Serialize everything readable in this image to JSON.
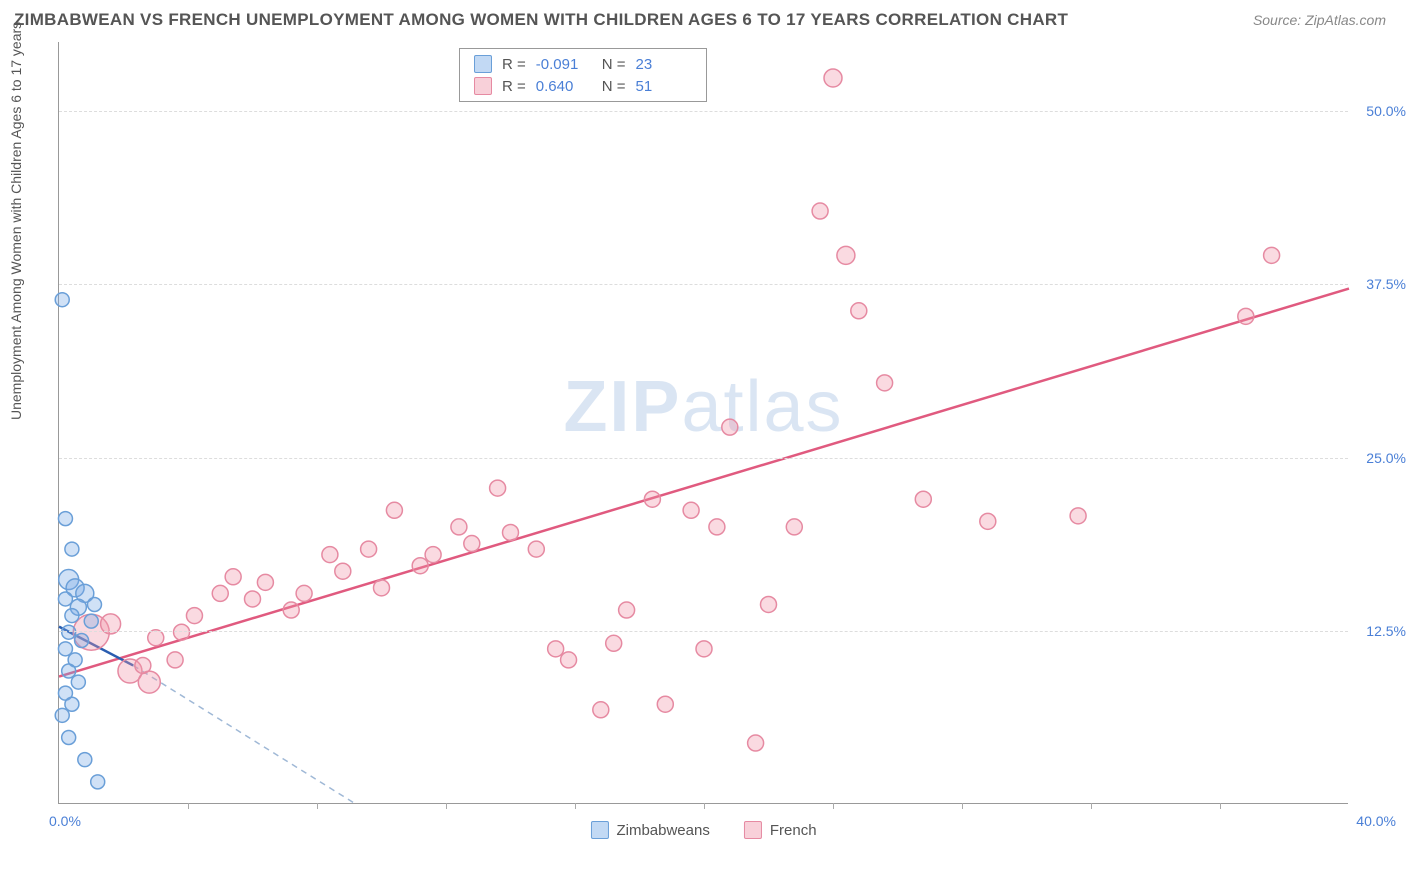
{
  "header": {
    "title": "ZIMBABWEAN VS FRENCH UNEMPLOYMENT AMONG WOMEN WITH CHILDREN AGES 6 TO 17 YEARS CORRELATION CHART",
    "source": "Source: ZipAtlas.com"
  },
  "y_axis": {
    "label": "Unemployment Among Women with Children Ages 6 to 17 years"
  },
  "watermark": {
    "left": "ZIP",
    "right": "atlas"
  },
  "chart": {
    "type": "scatter",
    "x_domain": [
      0,
      40
    ],
    "y_domain": [
      0,
      55
    ],
    "y_ticks": [
      12.5,
      25.0,
      37.5,
      50.0
    ],
    "y_tick_labels": [
      "12.5%",
      "25.0%",
      "37.5%",
      "50.0%"
    ],
    "x_minor_ticks": [
      4,
      8,
      12,
      16,
      20,
      24,
      28,
      32,
      36
    ],
    "x_origin_label": "0.0%",
    "x_end_label": "40.0%",
    "colors": {
      "blue_fill": "rgba(120,170,230,0.35)",
      "blue_stroke": "#6a9fd8",
      "pink_fill": "rgba(240,150,170,0.35)",
      "pink_stroke": "#e68aa2",
      "trend_blue": "#2a5db0",
      "trend_pink": "#e05a7f",
      "trend_dash": "#9fb8d6",
      "axis_label": "#4a7fd6",
      "grid": "#dddddd"
    },
    "stats_legend": [
      {
        "swatch": "blue",
        "r_label": "R =",
        "r_value": "-0.091",
        "n_label": "N =",
        "n_value": "23"
      },
      {
        "swatch": "pink",
        "r_label": "R =",
        "r_value": "0.640",
        "n_label": "N =",
        "n_value": "51"
      }
    ],
    "bottom_legend": [
      {
        "swatch": "blue",
        "label": "Zimbabweans"
      },
      {
        "swatch": "pink",
        "label": "French"
      }
    ],
    "series_blue": {
      "points": [
        {
          "x": 0.1,
          "y": 36.4,
          "r": 7
        },
        {
          "x": 0.2,
          "y": 20.6,
          "r": 7
        },
        {
          "x": 0.4,
          "y": 18.4,
          "r": 7
        },
        {
          "x": 0.3,
          "y": 16.2,
          "r": 10
        },
        {
          "x": 0.5,
          "y": 15.6,
          "r": 9
        },
        {
          "x": 0.8,
          "y": 15.2,
          "r": 9
        },
        {
          "x": 0.2,
          "y": 14.8,
          "r": 7
        },
        {
          "x": 0.6,
          "y": 14.2,
          "r": 8
        },
        {
          "x": 0.4,
          "y": 13.6,
          "r": 7
        },
        {
          "x": 1.0,
          "y": 13.2,
          "r": 7
        },
        {
          "x": 0.3,
          "y": 12.4,
          "r": 7
        },
        {
          "x": 0.7,
          "y": 11.8,
          "r": 7
        },
        {
          "x": 0.2,
          "y": 11.2,
          "r": 7
        },
        {
          "x": 0.5,
          "y": 10.4,
          "r": 7
        },
        {
          "x": 0.3,
          "y": 9.6,
          "r": 7
        },
        {
          "x": 0.6,
          "y": 8.8,
          "r": 7
        },
        {
          "x": 0.2,
          "y": 8.0,
          "r": 7
        },
        {
          "x": 0.4,
          "y": 7.2,
          "r": 7
        },
        {
          "x": 0.1,
          "y": 6.4,
          "r": 7
        },
        {
          "x": 0.8,
          "y": 3.2,
          "r": 7
        },
        {
          "x": 1.2,
          "y": 1.6,
          "r": 7
        },
        {
          "x": 0.3,
          "y": 4.8,
          "r": 7
        },
        {
          "x": 1.1,
          "y": 14.4,
          "r": 7
        }
      ],
      "trend_solid": {
        "x1": 0,
        "y1": 12.8,
        "x2": 2.3,
        "y2": 10.0
      },
      "trend_dashed": {
        "x1": 2.3,
        "y1": 10.0,
        "x2": 9.2,
        "y2": 0
      }
    },
    "series_pink": {
      "points": [
        {
          "x": 1.0,
          "y": 12.4,
          "r": 18
        },
        {
          "x": 1.6,
          "y": 13.0,
          "r": 10
        },
        {
          "x": 2.2,
          "y": 9.6,
          "r": 12
        },
        {
          "x": 2.8,
          "y": 8.8,
          "r": 11
        },
        {
          "x": 2.6,
          "y": 10.0,
          "r": 8
        },
        {
          "x": 3.0,
          "y": 12.0,
          "r": 8
        },
        {
          "x": 3.6,
          "y": 10.4,
          "r": 8
        },
        {
          "x": 3.8,
          "y": 12.4,
          "r": 8
        },
        {
          "x": 4.2,
          "y": 13.6,
          "r": 8
        },
        {
          "x": 5.0,
          "y": 15.2,
          "r": 8
        },
        {
          "x": 5.4,
          "y": 16.4,
          "r": 8
        },
        {
          "x": 6.0,
          "y": 14.8,
          "r": 8
        },
        {
          "x": 6.4,
          "y": 16.0,
          "r": 8
        },
        {
          "x": 7.2,
          "y": 14.0,
          "r": 8
        },
        {
          "x": 7.6,
          "y": 15.2,
          "r": 8
        },
        {
          "x": 8.4,
          "y": 18.0,
          "r": 8
        },
        {
          "x": 8.8,
          "y": 16.8,
          "r": 8
        },
        {
          "x": 9.6,
          "y": 18.4,
          "r": 8
        },
        {
          "x": 10.0,
          "y": 15.6,
          "r": 8
        },
        {
          "x": 10.4,
          "y": 21.2,
          "r": 8
        },
        {
          "x": 11.2,
          "y": 17.2,
          "r": 8
        },
        {
          "x": 11.6,
          "y": 18.0,
          "r": 8
        },
        {
          "x": 12.4,
          "y": 20.0,
          "r": 8
        },
        {
          "x": 12.8,
          "y": 18.8,
          "r": 8
        },
        {
          "x": 13.6,
          "y": 22.8,
          "r": 8
        },
        {
          "x": 14.0,
          "y": 19.6,
          "r": 8
        },
        {
          "x": 14.8,
          "y": 18.4,
          "r": 8
        },
        {
          "x": 15.4,
          "y": 11.2,
          "r": 8
        },
        {
          "x": 15.8,
          "y": 10.4,
          "r": 8
        },
        {
          "x": 16.8,
          "y": 6.8,
          "r": 8
        },
        {
          "x": 17.2,
          "y": 11.6,
          "r": 8
        },
        {
          "x": 17.6,
          "y": 14.0,
          "r": 8
        },
        {
          "x": 18.4,
          "y": 22.0,
          "r": 8
        },
        {
          "x": 18.8,
          "y": 7.2,
          "r": 8
        },
        {
          "x": 19.6,
          "y": 21.2,
          "r": 8
        },
        {
          "x": 20.0,
          "y": 11.2,
          "r": 8
        },
        {
          "x": 20.4,
          "y": 20.0,
          "r": 8
        },
        {
          "x": 20.8,
          "y": 27.2,
          "r": 8
        },
        {
          "x": 21.6,
          "y": 4.4,
          "r": 8
        },
        {
          "x": 22.8,
          "y": 20.0,
          "r": 8
        },
        {
          "x": 23.6,
          "y": 42.8,
          "r": 8
        },
        {
          "x": 24.0,
          "y": 52.4,
          "r": 9
        },
        {
          "x": 24.4,
          "y": 39.6,
          "r": 9
        },
        {
          "x": 24.8,
          "y": 35.6,
          "r": 8
        },
        {
          "x": 25.6,
          "y": 30.4,
          "r": 8
        },
        {
          "x": 26.8,
          "y": 22.0,
          "r": 8
        },
        {
          "x": 28.8,
          "y": 20.4,
          "r": 8
        },
        {
          "x": 31.6,
          "y": 20.8,
          "r": 8
        },
        {
          "x": 36.8,
          "y": 35.2,
          "r": 8
        },
        {
          "x": 37.6,
          "y": 39.6,
          "r": 8
        },
        {
          "x": 22.0,
          "y": 14.4,
          "r": 8
        }
      ],
      "trend": {
        "x1": 0,
        "y1": 9.2,
        "x2": 40,
        "y2": 37.2
      }
    }
  }
}
